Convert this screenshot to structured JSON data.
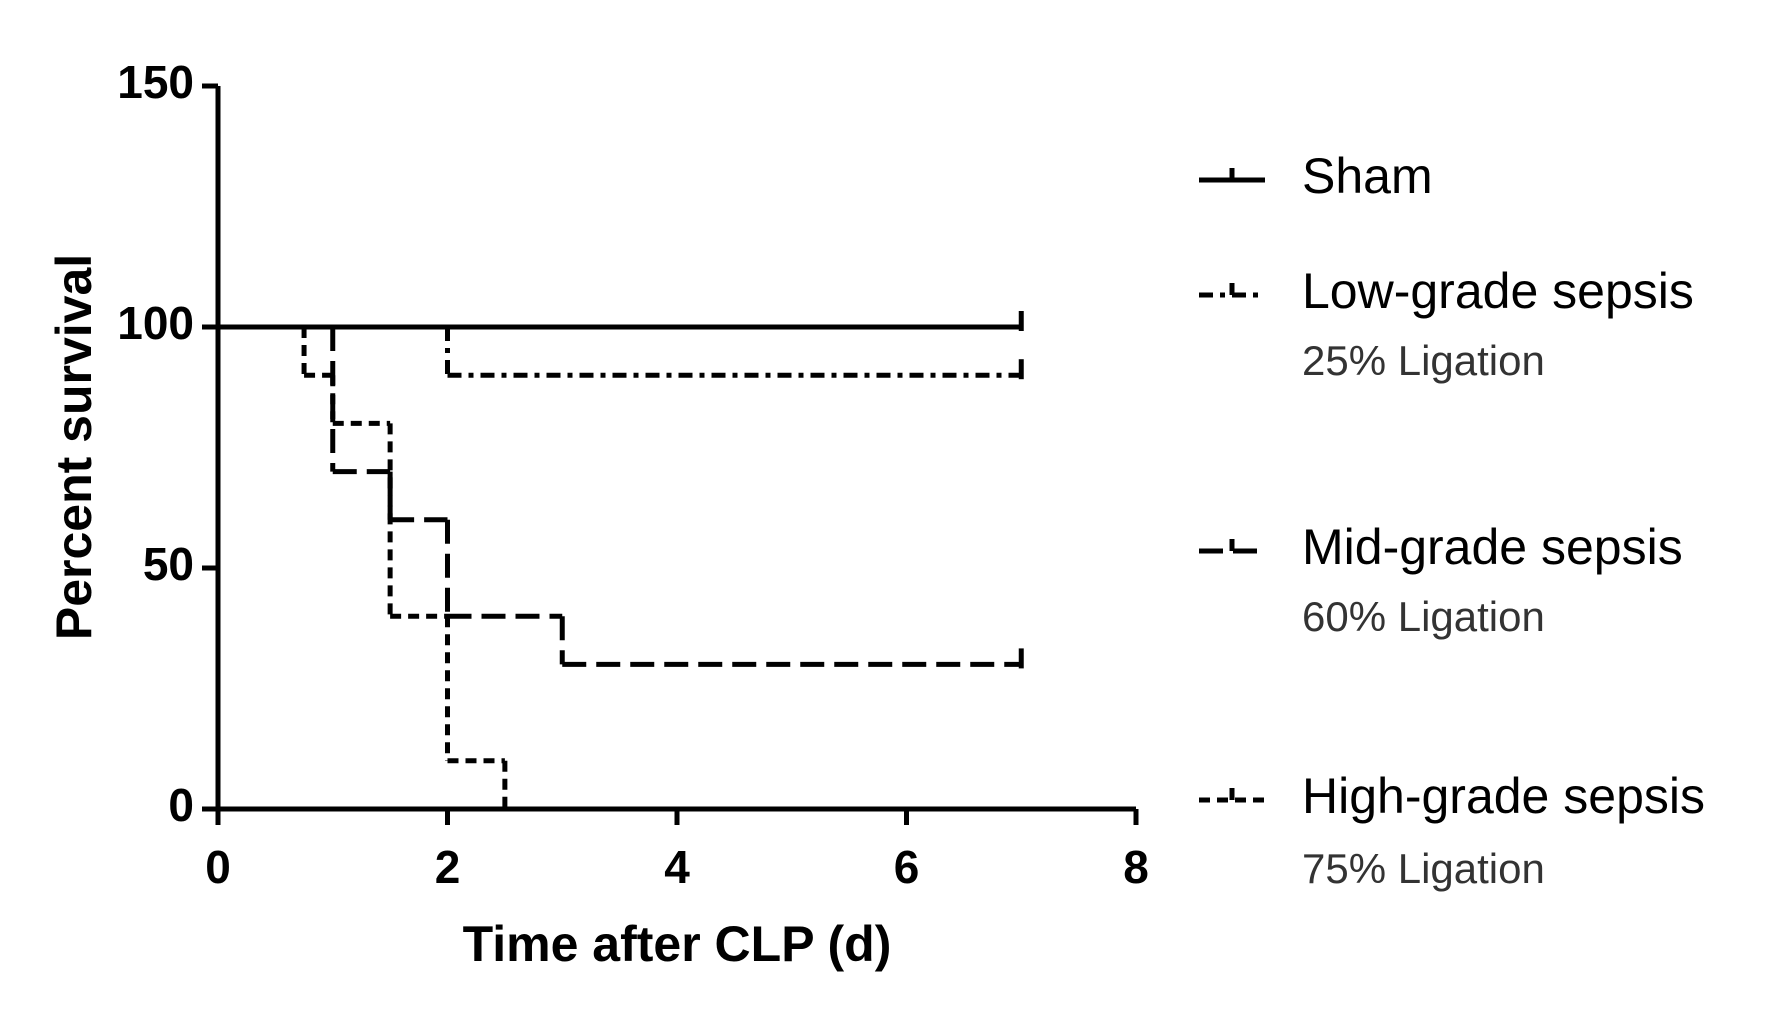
{
  "chart_data": {
    "type": "step",
    "xlabel": "Time after CLP (d)",
    "ylabel": "Percent survival",
    "xlim": [
      0,
      8
    ],
    "xticks": [
      0,
      2,
      4,
      6,
      8
    ],
    "ylim": [
      0,
      150
    ],
    "yticks": [
      0,
      50,
      100,
      150
    ],
    "censor_x": 7,
    "series": [
      {
        "name": "Sham",
        "color": "#000000",
        "dash": [],
        "x": [
          0,
          7
        ],
        "values": [
          100,
          100
        ]
      },
      {
        "name": "Low-grade sepsis",
        "subtitle": "25% Ligation",
        "color": "#000000",
        "dash": [
          14,
          7,
          5,
          7
        ],
        "x": [
          0,
          2,
          7
        ],
        "values": [
          100,
          90,
          90
        ]
      },
      {
        "name": "Mid-grade sepsis",
        "subtitle": "60% Ligation",
        "color": "#000000",
        "dash": [
          24,
          10
        ],
        "x": [
          0,
          1,
          1.5,
          2,
          3,
          7
        ],
        "values": [
          100,
          70,
          60,
          40,
          30,
          30
        ]
      },
      {
        "name": "High-grade sepsis",
        "subtitle": "75% Ligation",
        "color": "#000000",
        "dash": [
          11,
          7
        ],
        "x": [
          0,
          0.75,
          1,
          1.5,
          2,
          2.5
        ],
        "values": [
          100,
          90,
          80,
          40,
          10,
          0
        ]
      }
    ]
  }
}
